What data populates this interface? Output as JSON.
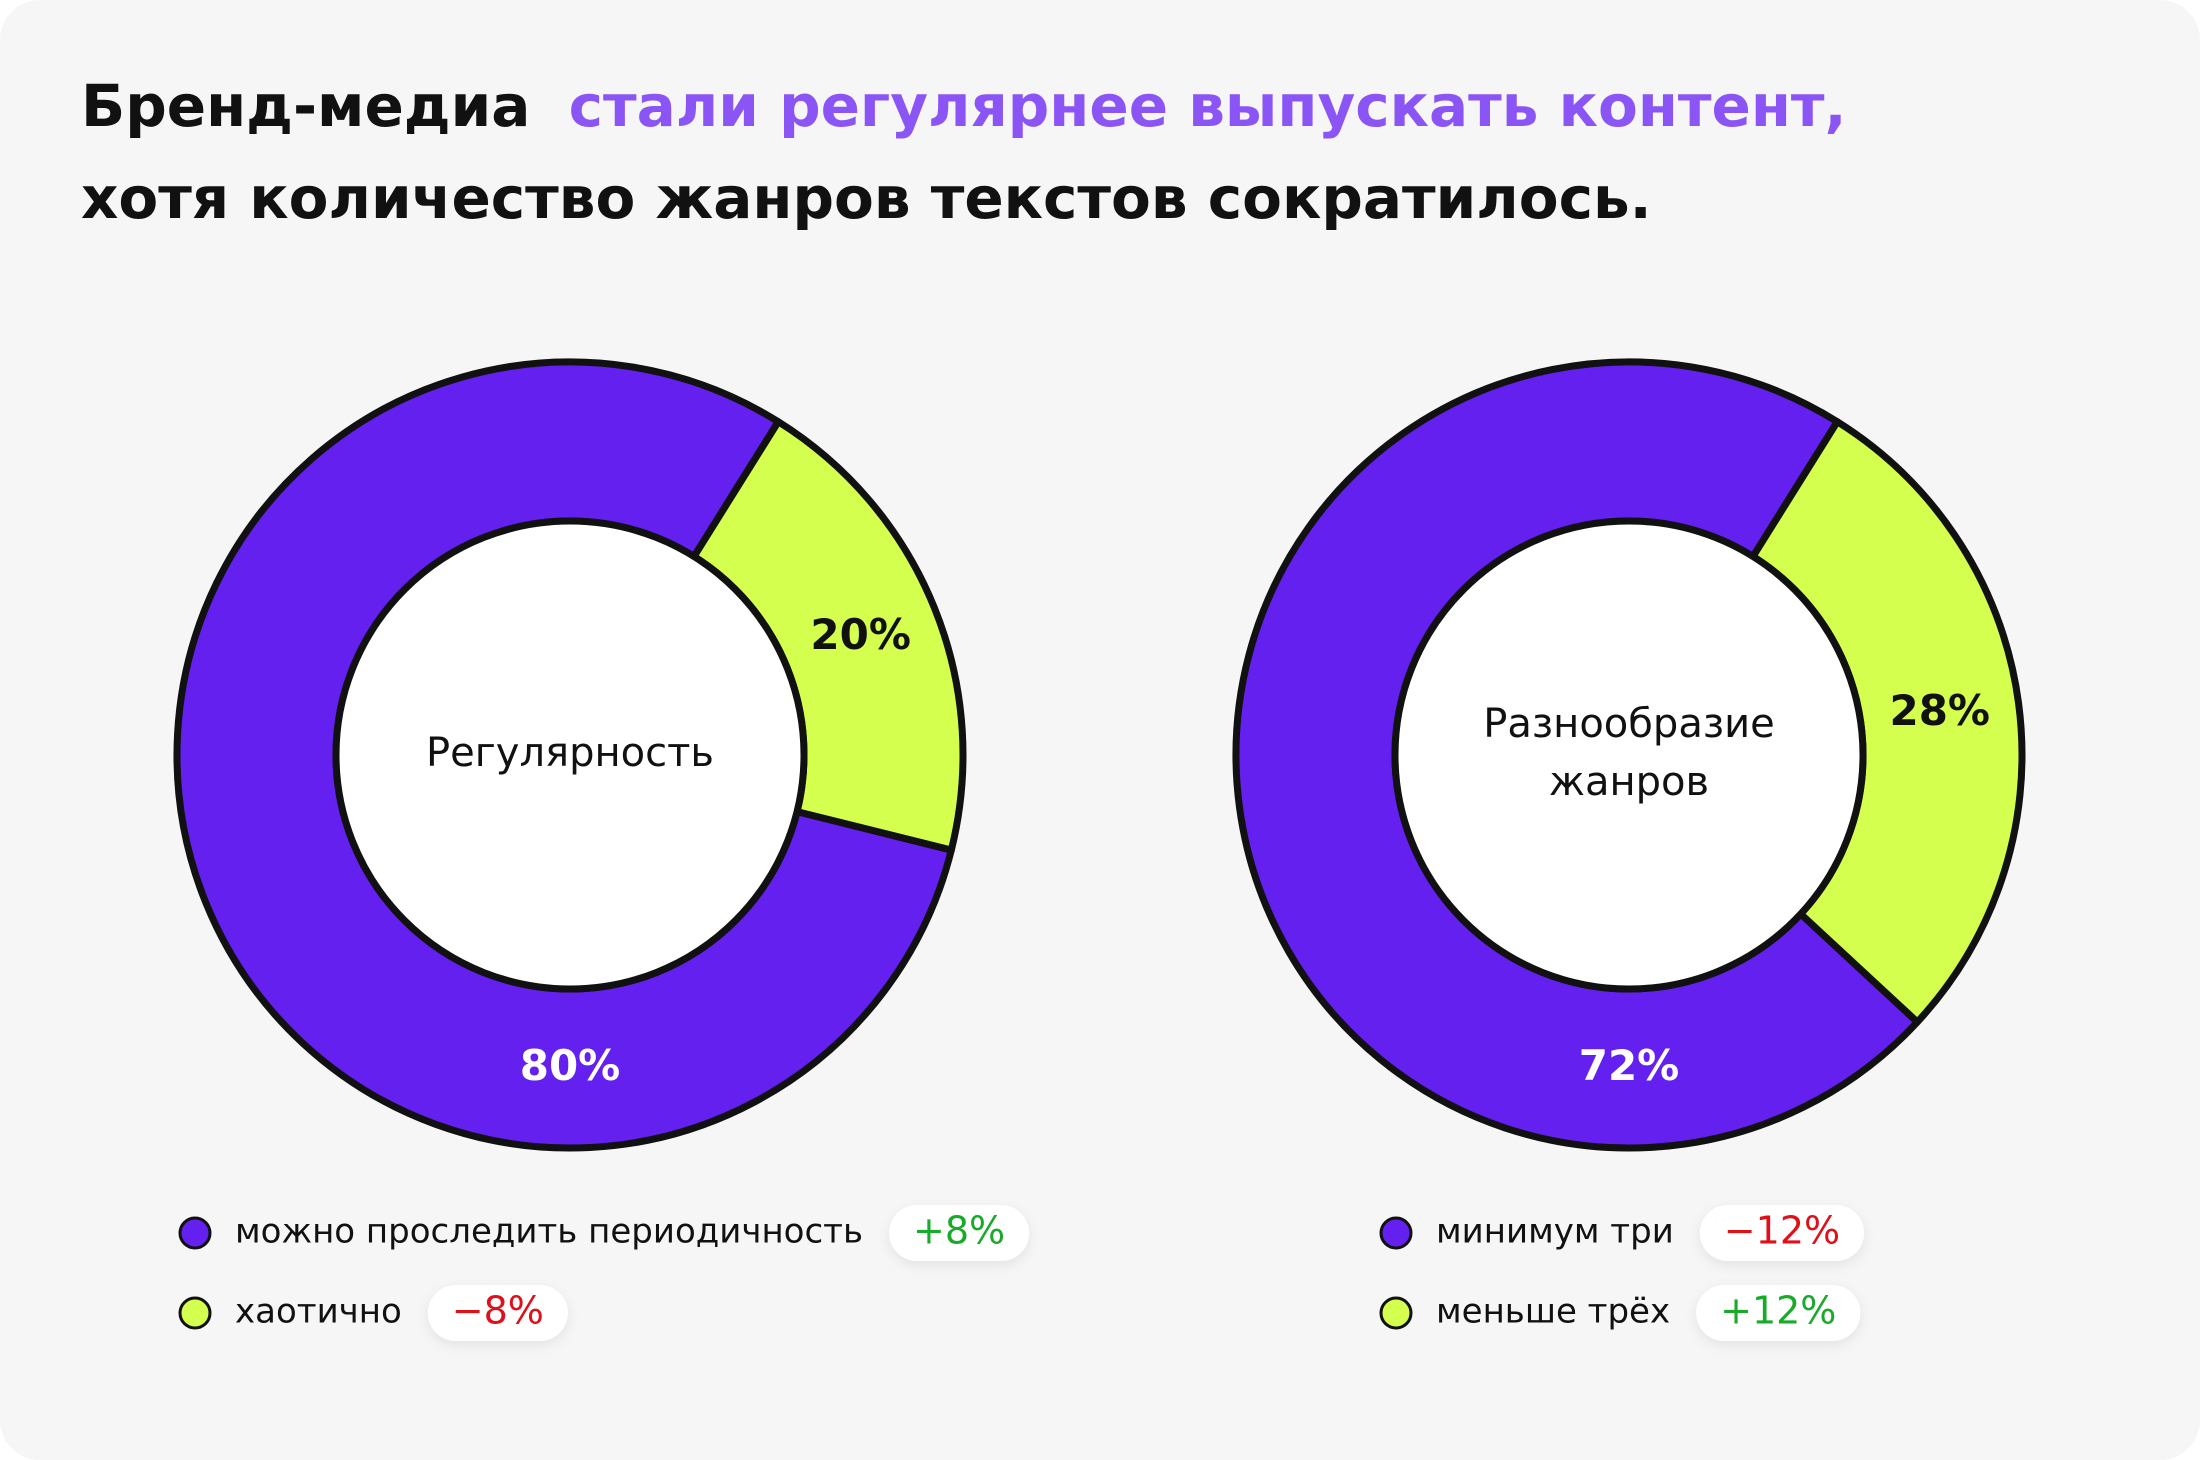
{
  "header": {
    "title_line1": [
      {
        "text": "Бренд-медиа",
        "color": "#111111"
      },
      {
        "text": "стали регулярнее выпускать контент,",
        "color": "#8b55f5"
      }
    ],
    "title_line2": "хотя количество жанров текстов сократилось."
  },
  "chart_data": [
    {
      "type": "donut",
      "center_label": [
        "Регулярность"
      ],
      "categories": [
        "можно проследить периодичность",
        "хаотично"
      ],
      "values": [
        80,
        20
      ],
      "value_labels": [
        "80%",
        "20%"
      ],
      "colors": [
        "#6320ee",
        "#d4ff4f"
      ],
      "changes": [
        8,
        -8
      ],
      "change_labels": [
        "+8%",
        "−8%"
      ]
    },
    {
      "type": "donut",
      "center_label": [
        "Разнообразие",
        "жанров"
      ],
      "categories": [
        "минимум три",
        "меньше трёх"
      ],
      "values": [
        72,
        28
      ],
      "value_labels": [
        "72%",
        "28%"
      ],
      "colors": [
        "#6320ee",
        "#d4ff4f"
      ],
      "changes": [
        -12,
        12
      ],
      "change_labels": [
        "−12%",
        "+12%"
      ]
    }
  ]
}
